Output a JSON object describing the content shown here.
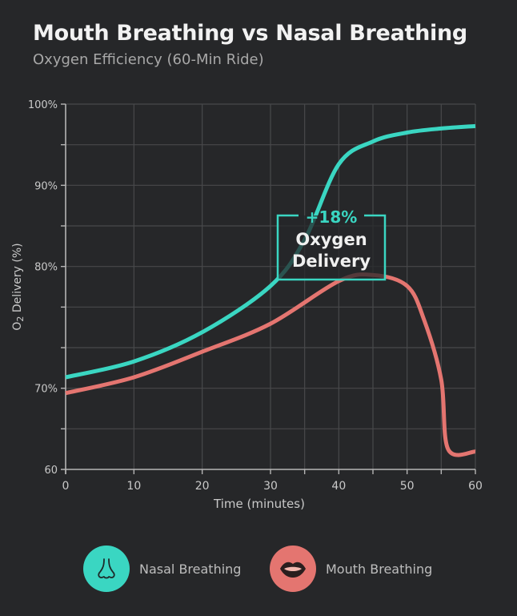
{
  "title": "Mouth Breathing vs Nasal Breathing",
  "subtitle": "Oxygen Efficiency (60-Min Ride)",
  "colors": {
    "nasal": "#3ad6c2",
    "mouth": "#e47570",
    "grid": "#48494b",
    "axis": "#b5b5b5",
    "text": "#c9c9c9",
    "annotation_text": "#f0f0f0"
  },
  "annotation": {
    "value": "+18%",
    "line1": "Oxygen",
    "line2": "Delivery"
  },
  "legend": [
    {
      "name": "Nasal Breathing",
      "icon": "nose-icon"
    },
    {
      "name": "Mouth Breathing",
      "icon": "lips-icon"
    }
  ],
  "chart_data": {
    "type": "line",
    "title": "Mouth Breathing vs Nasal Breathing",
    "subtitle": "Oxygen Efficiency (60-Min Ride)",
    "xlabel": "Time (minutes)",
    "ylabel": "O2 Delivery (%)",
    "xlim": [
      0,
      60
    ],
    "x_ticks": [
      0,
      10,
      20,
      30,
      40,
      50,
      60
    ],
    "x_minor_ticks": [
      35,
      45,
      55
    ],
    "y_ticks": [
      {
        "value": 60,
        "label": "60"
      },
      {
        "value": 70,
        "label": "70%"
      },
      {
        "value": 80,
        "label": "80%"
      },
      {
        "value": 90,
        "label": "90%"
      },
      {
        "value": 100,
        "label": "100%"
      }
    ],
    "grid": true,
    "legend_position": "bottom",
    "series": [
      {
        "name": "Nasal Breathing",
        "x": [
          0,
          10,
          20,
          30,
          35,
          40,
          45,
          50,
          55,
          60
        ],
        "values": [
          70.9,
          72.2,
          74.6,
          78.4,
          83.3,
          92.6,
          95.4,
          96.5,
          97.0,
          97.3
        ]
      },
      {
        "name": "Mouth Breathing",
        "x": [
          0,
          10,
          20,
          30,
          40,
          45,
          50,
          52.5,
          55,
          56,
          60
        ],
        "values": [
          69.4,
          70.9,
          73.0,
          75.3,
          78.8,
          79.3,
          78.4,
          75.6,
          70.7,
          62.5,
          62.2
        ]
      }
    ],
    "annotations": [
      {
        "text": "+18% Oxygen Delivery",
        "x": 43,
        "y": 87
      }
    ]
  }
}
